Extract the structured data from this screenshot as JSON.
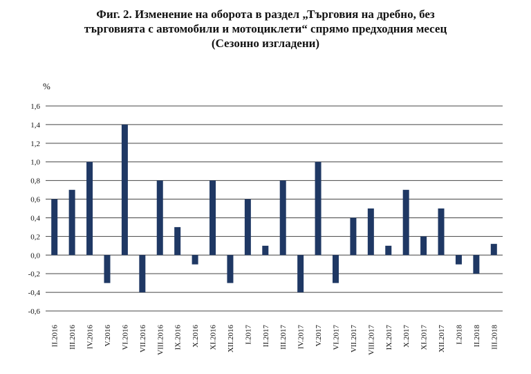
{
  "title_lines": [
    "Фиг. 2. Изменение на оборота в раздел „Търговия на дребно, без",
    "търговията с автомобили и мотоциклети“ спрямо предходния месец",
    "(Сезонно изгладени)"
  ],
  "colors": {
    "bar": "#1f3864",
    "grid": "#444444"
  },
  "chart_data": {
    "type": "bar",
    "title": "Фиг. 2. Изменение на оборота в раздел „Търговия на дребно, без търговията с автомобили и мотоциклети“ спрямо предходния месец (Сезонно изгладени)",
    "ylabel": "%",
    "xlabel": "",
    "ylim": [
      -0.6,
      1.6
    ],
    "yticks": [
      1.6,
      1.4,
      1.2,
      1.0,
      0.8,
      0.6,
      0.4,
      0.2,
      0.0,
      -0.2,
      -0.4,
      -0.6
    ],
    "ytick_labels": [
      "1,6",
      "1,4",
      "1,2",
      "1,0",
      "0,8",
      "0,6",
      "0,4",
      "0,2",
      "0,0",
      "-0,2",
      "-0,4",
      "-0,6"
    ],
    "grid": true,
    "categories": [
      "II.2016",
      "III.2016",
      "IV.2016",
      "V.2016",
      "VI.2016",
      "VII.2016",
      "VIII.2016",
      "IX.2016",
      "X.2016",
      "XI.2016",
      "XII.2016",
      "I.2017",
      "II.2017",
      "III.2017",
      "IV.2017",
      "V.2017",
      "VI.2017",
      "VII.2017",
      "VIII.2017",
      "IX.2017",
      "X.2017",
      "XI.2017",
      "XII.2017",
      "I.2018",
      "II.2018",
      "III.2018"
    ],
    "tick_labels": [
      "II.2016",
      "III.2016",
      "IV.2016",
      "V.2016",
      "VI.2016",
      "VII.2016",
      "VIII.2016",
      "IX.2016",
      "X.2016",
      "XI.2016",
      "XII.2016",
      "I.2017",
      "II.2017",
      "III.2017",
      "IV.2017",
      "V.2017",
      "VI.2017",
      "VII.2017",
      "VIII.2017",
      "IX.2017",
      "X.2017",
      "XI.2017",
      "XII.2017",
      "I.2018",
      "II.2018",
      "III.2018"
    ],
    "values": [
      0.6,
      0.7,
      1.0,
      -0.3,
      1.4,
      -0.4,
      0.8,
      0.3,
      -0.1,
      0.8,
      -0.3,
      0.6,
      0.1,
      0.8,
      -0.4,
      1.0,
      -0.3,
      0.4,
      0.5,
      0.1,
      0.7,
      0.2,
      0.5,
      -0.1,
      -0.2,
      0.12
    ]
  }
}
